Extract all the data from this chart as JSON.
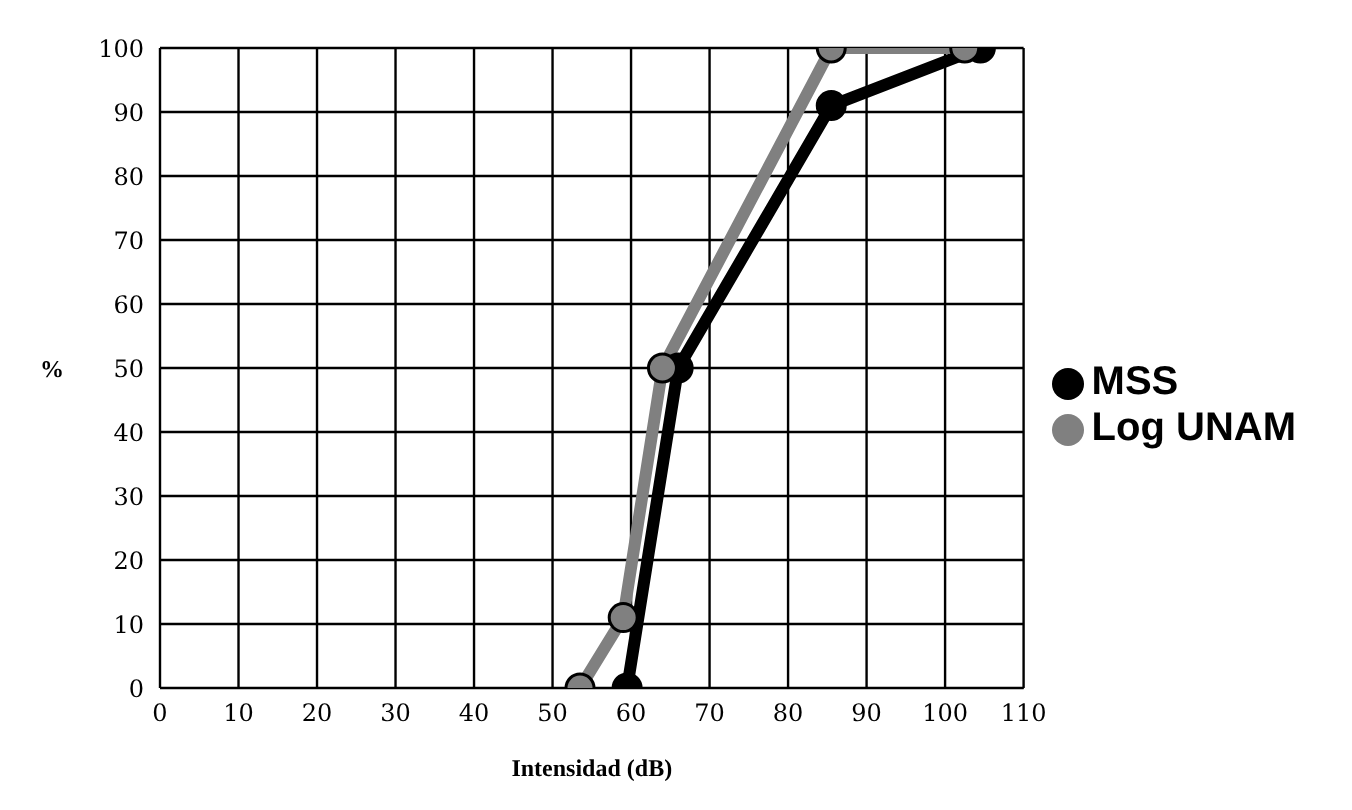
{
  "chart_data": {
    "type": "line",
    "xlabel": "Intensidad (dB)",
    "ylabel": "%",
    "xlim": [
      0,
      110
    ],
    "xticks": [
      0,
      10,
      20,
      30,
      40,
      50,
      60,
      70,
      80,
      90,
      100,
      110
    ],
    "ylim": [
      0,
      100
    ],
    "yticks": [
      0,
      10,
      20,
      30,
      40,
      50,
      60,
      70,
      80,
      90,
      100
    ],
    "grid": true,
    "legend": "right",
    "marker": "circle",
    "line_style": "solid",
    "series": [
      {
        "name": "MSS",
        "color": "#000000",
        "x": [
          59.5,
          66,
          85.5,
          104.5
        ],
        "values": [
          0,
          50,
          91,
          100
        ]
      },
      {
        "name": "Log UNAM",
        "color": "#808080",
        "x": [
          53.5,
          59,
          64,
          85.5,
          102.5
        ],
        "values": [
          0,
          11,
          50,
          100,
          100
        ]
      }
    ]
  }
}
